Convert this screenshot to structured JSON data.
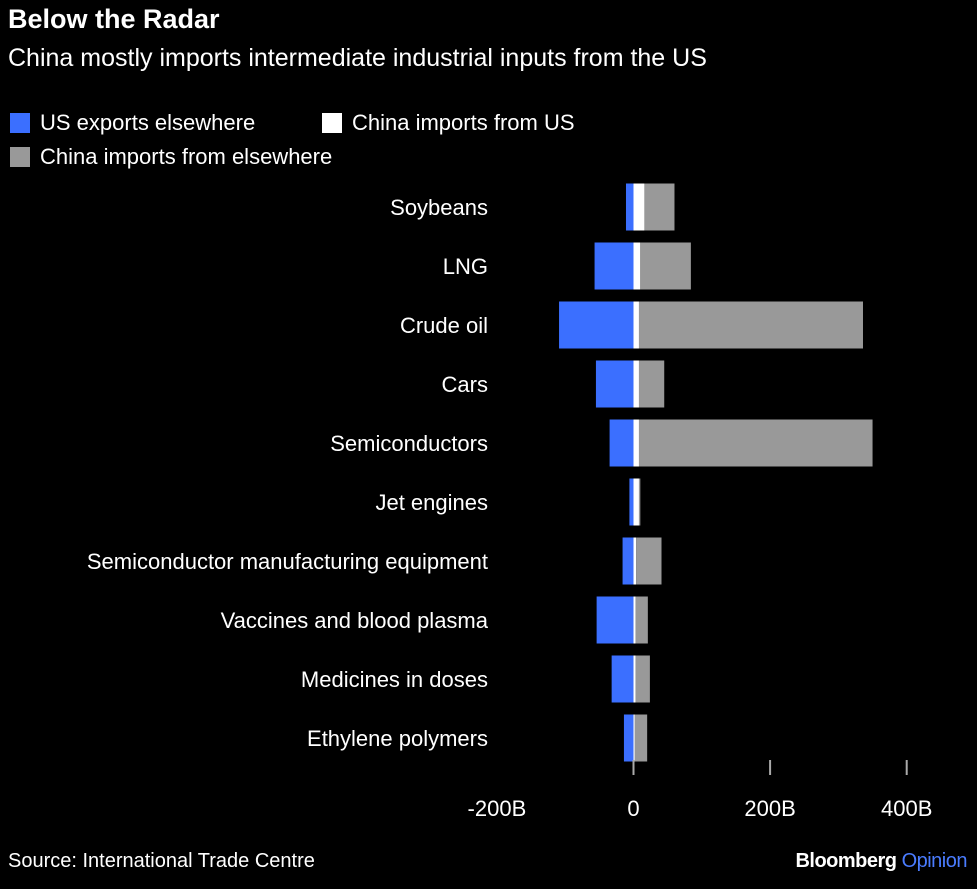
{
  "chart_data": {
    "type": "bar",
    "orientation": "horizontal",
    "stacked": true,
    "title": "Below the Radar",
    "subtitle": "China mostly imports intermediate industrial inputs from the US",
    "categories": [
      "Soybeans",
      "LNG",
      "Crude oil",
      "Cars",
      "Semiconductors",
      "Jet engines",
      "Semiconductor manufacturing equipment",
      "Vaccines and blood plasma",
      "Medicines in doses",
      "Ethylene polymers"
    ],
    "series": [
      {
        "name": "US exports elsewhere",
        "color": "#3b6fff",
        "values": [
          -11,
          -57,
          -109,
          -55,
          -35,
          -6,
          -16,
          -54,
          -32,
          -14
        ]
      },
      {
        "name": "China imports from US",
        "color": "#ffffff",
        "values": [
          16,
          10,
          8,
          8,
          8,
          8,
          4,
          3,
          3,
          2
        ]
      },
      {
        "name": "China imports from elsewhere",
        "color": "#999999",
        "values": [
          44,
          74,
          328,
          37,
          342,
          2,
          37,
          18,
          21,
          18
        ]
      }
    ],
    "xlim": [
      -200,
      450
    ],
    "xticks": [
      -200,
      0,
      200,
      400
    ],
    "xtick_labels": [
      "-200B",
      "0",
      "200B",
      "400B"
    ],
    "xlabel": "",
    "ylabel": "",
    "legend_position": "top-left",
    "source": "Source: International Trade Centre",
    "brand": {
      "name": "Bloomberg",
      "sub": "Opinion"
    }
  }
}
